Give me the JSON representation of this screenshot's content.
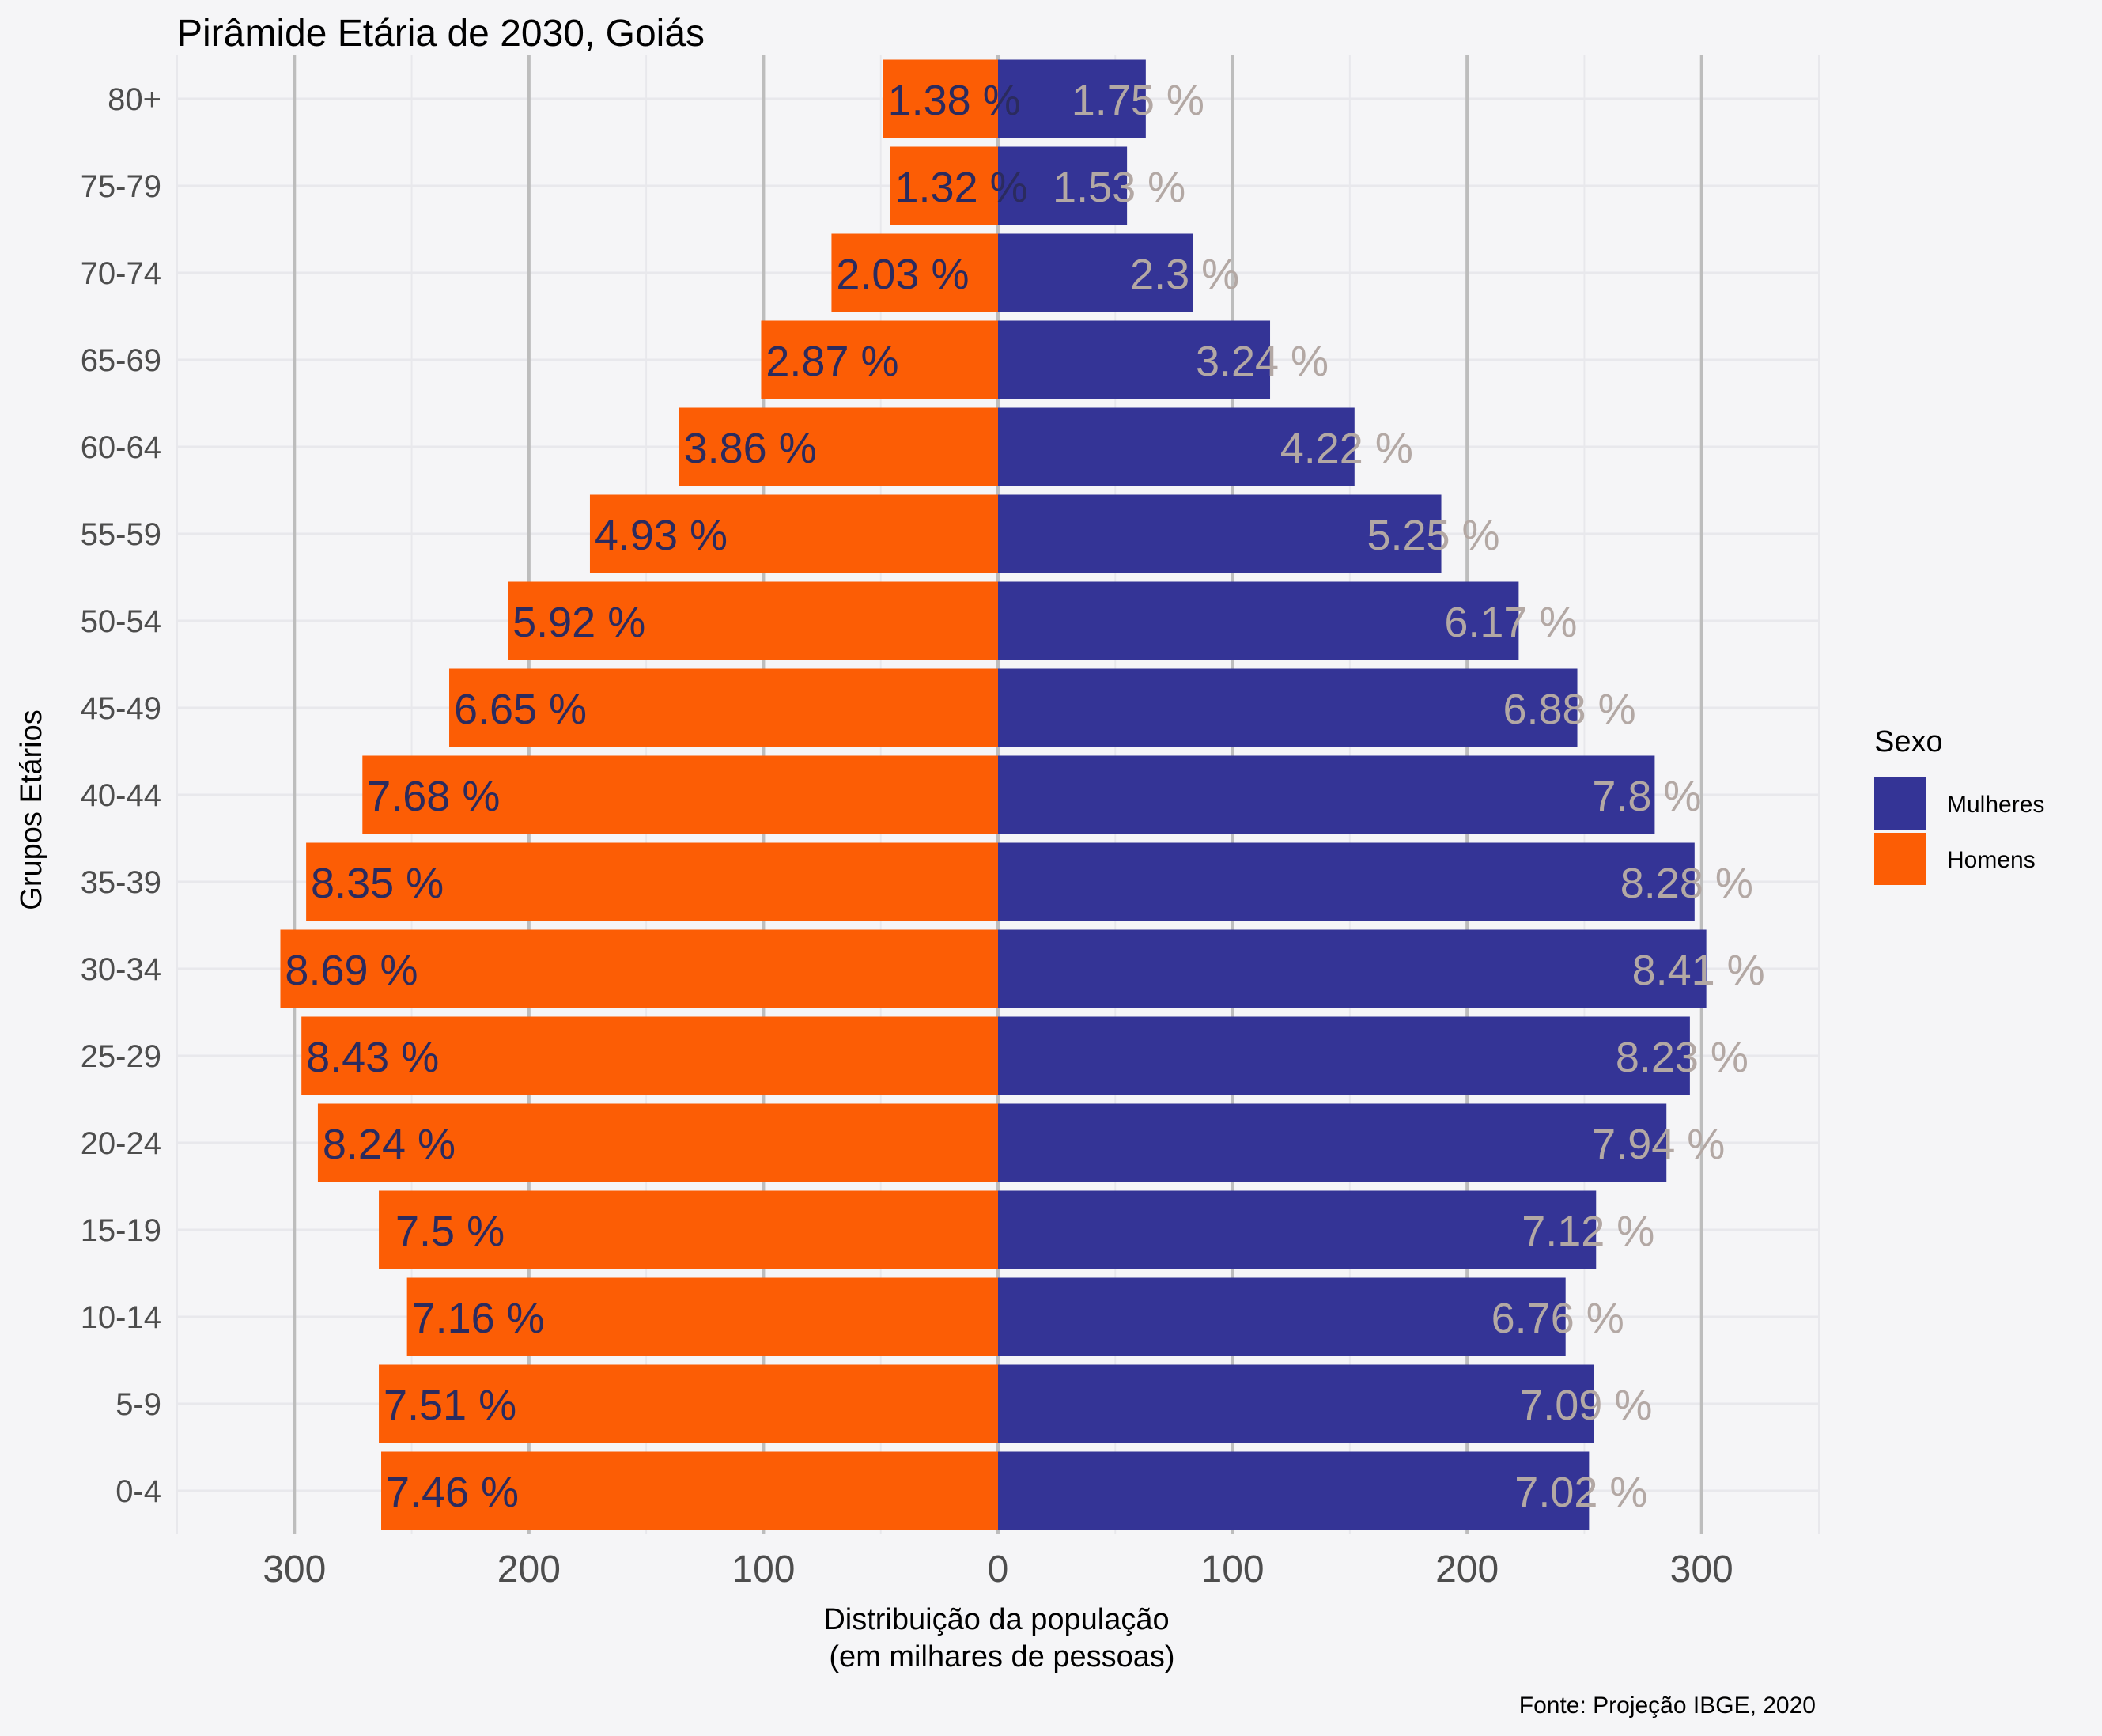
{
  "colors": {
    "background": "#f5f5f7",
    "grid_major": "#bdbdbd",
    "grid_minor": "#e8e8ec",
    "mulheres": "#343496",
    "homens": "#fc5d05",
    "label_homens": "#2b2b5e",
    "label_mulheres": "#b3a8a4"
  },
  "chart_data": {
    "type": "bar",
    "orientation": "horizontal",
    "title": "Pirâmide Etária de 2030, Goiás",
    "xlabel": "Distribuição da população\n(em milhares de pessoas)",
    "ylabel": "Grupos Etários",
    "caption": "Fonte: Projeção IBGE, 2020",
    "xlim": [
      -350,
      350
    ],
    "x_ticks": [
      {
        "value": -300,
        "label": "300"
      },
      {
        "value": -200,
        "label": "200"
      },
      {
        "value": -100,
        "label": "100"
      },
      {
        "value": 0,
        "label": "0"
      },
      {
        "value": 100,
        "label": "100"
      },
      {
        "value": 200,
        "label": "200"
      },
      {
        "value": 300,
        "label": "300"
      }
    ],
    "grid": true,
    "legend": {
      "title": "Sexo",
      "position": "right",
      "entries": [
        "Mulheres",
        "Homens"
      ]
    },
    "categories": [
      "0-4",
      "5-9",
      "10-14",
      "15-19",
      "20-24",
      "25-29",
      "30-34",
      "35-39",
      "40-44",
      "45-49",
      "50-54",
      "55-59",
      "60-64",
      "65-69",
      "70-74",
      "75-79",
      "80+"
    ],
    "series": [
      {
        "name": "Homens",
        "values": [
          263,
          264,
          252,
          264,
          290,
          297,
          306,
          295,
          271,
          234,
          209,
          174,
          136,
          101,
          71,
          46,
          49
        ],
        "labels": [
          "7.46 %",
          "7.51 %",
          "7.16 %",
          "7.5 %",
          "8.24 %",
          "8.43 %",
          "8.69 %",
          "8.35 %",
          "7.68 %",
          "6.65 %",
          "5.92 %",
          "4.93 %",
          "3.86 %",
          "2.87 %",
          "2.03 %",
          "1.32 %",
          "1.38 %"
        ]
      },
      {
        "name": "Mulheres",
        "values": [
          252,
          254,
          242,
          255,
          285,
          295,
          302,
          297,
          280,
          247,
          222,
          189,
          152,
          116,
          83,
          55,
          63
        ],
        "labels": [
          "7.02 %",
          "7.09 %",
          "6.76 %",
          "7.12 %",
          "7.94 %",
          "8.23 %",
          "8.41 %",
          "8.28 %",
          "7.8 %",
          "6.88 %",
          "6.17 %",
          "5.25 %",
          "4.22 %",
          "3.24 %",
          "2.3 %",
          "1.53 %",
          "1.75 %"
        ]
      }
    ]
  }
}
